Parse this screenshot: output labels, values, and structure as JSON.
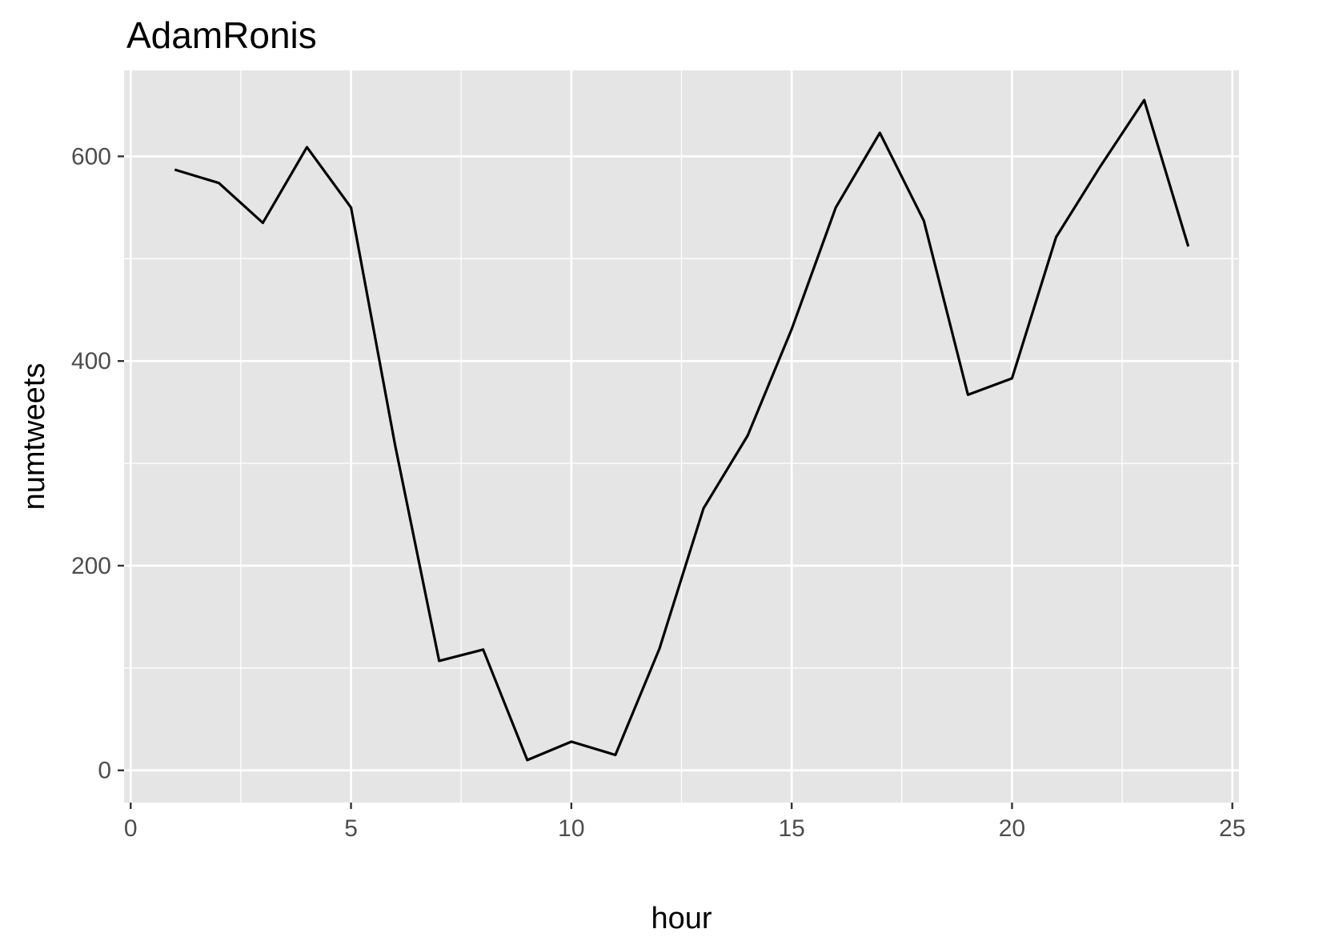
{
  "chart_data": {
    "type": "line",
    "title": "AdamRonis",
    "xlabel": "hour",
    "ylabel": "numtweets",
    "xlim": [
      -0.15,
      25.15
    ],
    "ylim": [
      -31.5,
      684
    ],
    "x_ticks": [
      0,
      5,
      10,
      15,
      20,
      25
    ],
    "y_ticks": [
      0,
      200,
      400,
      600
    ],
    "x_tick_labels": [
      "0",
      "5",
      "10",
      "15",
      "20",
      "25"
    ],
    "y_tick_labels": [
      "0",
      "200",
      "400",
      "600"
    ],
    "grid": true,
    "legend": "none",
    "colors": {
      "panel": "#e5e5e5",
      "grid": "#ffffff",
      "line": "#000000",
      "tick": "#333333"
    },
    "series": [
      {
        "x": [
          1,
          2,
          3,
          4,
          5,
          6,
          7,
          8,
          9,
          10,
          11,
          12,
          13,
          14,
          15,
          16,
          17,
          18,
          19,
          20,
          21,
          22,
          23,
          24
        ],
        "y": [
          587,
          574,
          535,
          609,
          550,
          318,
          107,
          118,
          10,
          28,
          15,
          119,
          256,
          327,
          431,
          550,
          623,
          537,
          367,
          383,
          521,
          590,
          655,
          512
        ]
      }
    ]
  }
}
